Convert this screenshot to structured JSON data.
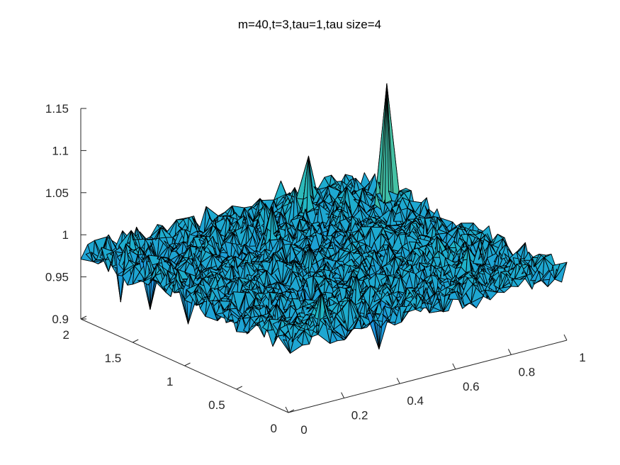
{
  "chart_data": {
    "type": "surface",
    "title": "m=40,t=3,tau=1,tau size=4",
    "xlabel": "",
    "ylabel": "",
    "zlabel": "",
    "xlim": [
      0,
      1
    ],
    "ylim": [
      0,
      2
    ],
    "zlim": [
      0.9,
      1.15
    ],
    "x_ticks": [
      "0",
      "0.2",
      "0.4",
      "0.6",
      "0.8",
      "1"
    ],
    "y_ticks": [
      "0",
      "0.5",
      "1",
      "1.5",
      "2"
    ],
    "z_ticks": [
      "0.9",
      "0.95",
      "1",
      "1.05",
      "1.1",
      "1.15"
    ],
    "x_tick_values": [
      0,
      0.2,
      0.4,
      0.6,
      0.8,
      1
    ],
    "y_tick_values": [
      0,
      0.5,
      1,
      1.5,
      2
    ],
    "z_tick_values": [
      0.9,
      0.95,
      1,
      1.05,
      1.1,
      1.15
    ],
    "grid": false,
    "colormap": [
      "#3e26a8",
      "#1c8fe3",
      "#1fb6c6",
      "#62c98a",
      "#c9c22e",
      "#f9fb0e"
    ],
    "surface_base": 0.98,
    "surface_noise": 0.015,
    "peaks": [
      {
        "x": 0.96,
        "y": 1.6,
        "z": 1.12
      },
      {
        "x": 0.72,
        "y": 1.75,
        "z": 1.045
      },
      {
        "x": 0.45,
        "y": 1.6,
        "z": 0.995
      },
      {
        "x": 0.5,
        "y": 1.0,
        "z": 0.985
      }
    ],
    "dips": [
      {
        "x": 0.05,
        "y": 1.75,
        "z": 0.93
      },
      {
        "x": 0.1,
        "y": 1.6,
        "z": 0.925
      },
      {
        "x": 0.05,
        "y": 1.1,
        "z": 0.94
      },
      {
        "x": 0.3,
        "y": 0.6,
        "z": 0.935
      },
      {
        "x": 0.4,
        "y": 0.2,
        "z": 0.93
      }
    ]
  }
}
